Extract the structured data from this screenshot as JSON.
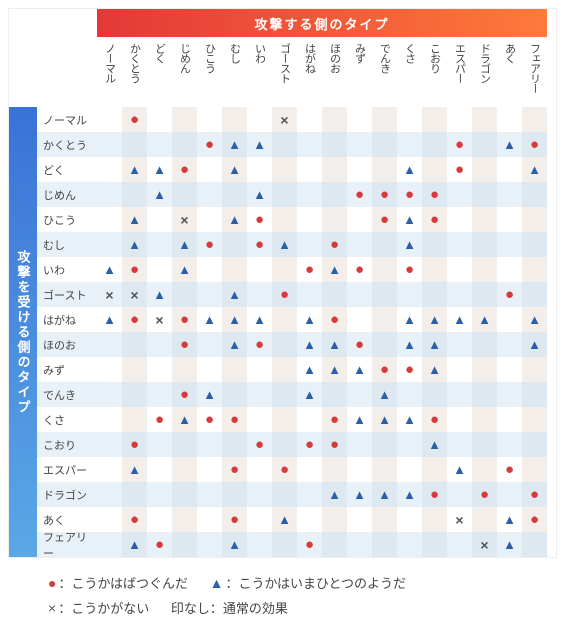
{
  "headers": {
    "attacker": "攻撃する側のタイプ",
    "defender": "攻撃を受ける側のタイプ"
  },
  "types": [
    "ノーマル",
    "かくとう",
    "どく",
    "じめん",
    "ひこう",
    "むし",
    "いわ",
    "ゴースト",
    "はがね",
    "ほのお",
    "みず",
    "でんき",
    "くさ",
    "こおり",
    "エスパー",
    "ドラゴン",
    "あく",
    "フェアリー"
  ],
  "marks": {
    "s": {
      "glyph": "●",
      "color": "#d73a3a",
      "label": "こうかはばつぐんだ"
    },
    "n": {
      "glyph": "▲",
      "color": "#2b5fa8",
      "label": "こうかはいまひとつのようだ"
    },
    "i": {
      "glyph": "×",
      "color": "#555555",
      "label": "こうかがない"
    },
    "none": {
      "label": "印なし：通常の効果"
    }
  },
  "colors": {
    "attacker_grad": [
      "#e33838",
      "#ff7a3b"
    ],
    "defender_grad": [
      "#3a72d8",
      "#5aa8e6"
    ],
    "shade0": "#ffffff",
    "shade1": "#f3eeea",
    "shade2": "#e9f1f8",
    "shade3": "#dde8f1"
  },
  "matrix": [
    [
      "",
      "s",
      "",
      "",
      "",
      "",
      "",
      "i",
      "",
      "",
      "",
      "",
      "",
      "",
      "",
      "",
      "",
      ""
    ],
    [
      "",
      "",
      "",
      "",
      "s",
      "n",
      "n",
      "",
      "",
      "",
      "",
      "",
      "",
      "",
      "s",
      "",
      "n",
      "s"
    ],
    [
      "",
      "n",
      "n",
      "s",
      "",
      "n",
      "",
      "",
      "",
      "",
      "",
      "",
      "n",
      "",
      "s",
      "",
      "",
      "n"
    ],
    [
      "",
      "",
      "n",
      "",
      "",
      "",
      "n",
      "",
      "",
      "",
      "s",
      "s",
      "s",
      "s",
      "",
      "",
      "",
      ""
    ],
    [
      "",
      "n",
      "",
      "i",
      "",
      "n",
      "s",
      "",
      "",
      "",
      "",
      "s",
      "n",
      "s",
      "",
      "",
      "",
      ""
    ],
    [
      "",
      "n",
      "",
      "n",
      "s",
      "",
      "s",
      "n",
      "",
      "s",
      "",
      "",
      "n",
      "",
      "",
      "",
      "",
      ""
    ],
    [
      "n",
      "s",
      "",
      "n",
      "",
      "",
      "",
      "",
      "s",
      "n",
      "s",
      "",
      "s",
      "",
      "",
      "",
      "",
      ""
    ],
    [
      "i",
      "i",
      "n",
      "",
      "",
      "n",
      "",
      "s",
      "",
      "",
      "",
      "",
      "",
      "",
      "",
      "",
      "s",
      ""
    ],
    [
      "n",
      "s",
      "i",
      "s",
      "n",
      "n",
      "n",
      "",
      "n",
      "s",
      "",
      "",
      "n",
      "n",
      "n",
      "n",
      "",
      "n"
    ],
    [
      "",
      "",
      "",
      "s",
      "",
      "n",
      "s",
      "",
      "n",
      "n",
      "s",
      "",
      "n",
      "n",
      "",
      "",
      "",
      "n"
    ],
    [
      "",
      "",
      "",
      "",
      "",
      "",
      "",
      "",
      "n",
      "n",
      "n",
      "s",
      "s",
      "n",
      "",
      "",
      "",
      ""
    ],
    [
      "",
      "",
      "",
      "s",
      "n",
      "",
      "",
      "",
      "n",
      "",
      "",
      "n",
      "",
      "",
      "",
      "",
      "",
      ""
    ],
    [
      "",
      "",
      "s",
      "n",
      "s",
      "s",
      "",
      "",
      "",
      "s",
      "n",
      "n",
      "n",
      "s",
      "",
      "",
      "",
      ""
    ],
    [
      "",
      "s",
      "",
      "",
      "",
      "",
      "s",
      "",
      "s",
      "s",
      "",
      "",
      "",
      "n",
      "",
      "",
      "",
      ""
    ],
    [
      "",
      "n",
      "",
      "",
      "",
      "s",
      "",
      "s",
      "",
      "",
      "",
      "",
      "",
      "",
      "n",
      "",
      "s",
      ""
    ],
    [
      "",
      "",
      "",
      "",
      "",
      "",
      "",
      "",
      "",
      "n",
      "n",
      "n",
      "n",
      "s",
      "",
      "s",
      "",
      "s"
    ],
    [
      "",
      "s",
      "",
      "",
      "",
      "s",
      "",
      "n",
      "",
      "",
      "",
      "",
      "",
      "",
      "i",
      "",
      "n",
      "s"
    ],
    [
      "",
      "n",
      "s",
      "",
      "",
      "n",
      "",
      "",
      "s",
      "",
      "",
      "",
      "",
      "",
      "",
      "i",
      "n",
      ""
    ]
  ]
}
